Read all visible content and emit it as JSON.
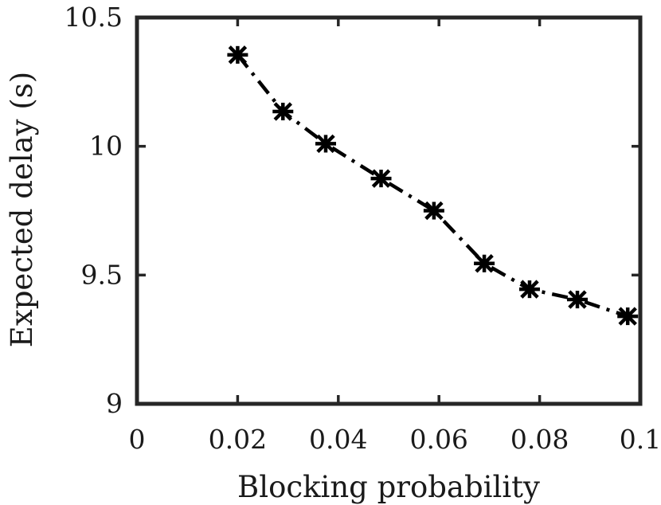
{
  "chart_data": {
    "type": "line",
    "title": "",
    "xlabel": "Blocking probability",
    "ylabel": "Expected delay (s)",
    "xlim": [
      0,
      0.1
    ],
    "ylim": [
      9,
      10.5
    ],
    "xticks": [
      0,
      0.02,
      0.04,
      0.06,
      0.08,
      0.1
    ],
    "xtick_labels": [
      "0",
      "0.02",
      "0.04",
      "0.06",
      "0.08",
      "0.1"
    ],
    "yticks": [
      9,
      9.5,
      10,
      10.5
    ],
    "ytick_labels": [
      "9",
      "9.5",
      "10",
      "10.5"
    ],
    "grid": false,
    "legend": "none",
    "series": [
      {
        "x": [
          0.02,
          0.029,
          0.0375,
          0.0485,
          0.059,
          0.069,
          0.078,
          0.0875,
          0.0975
        ],
        "y": [
          10.355,
          10.135,
          10.01,
          9.875,
          9.75,
          9.545,
          9.445,
          9.405,
          9.34
        ],
        "line_style": "dash-dot",
        "marker": "asterisk",
        "color": "#000000"
      }
    ]
  }
}
